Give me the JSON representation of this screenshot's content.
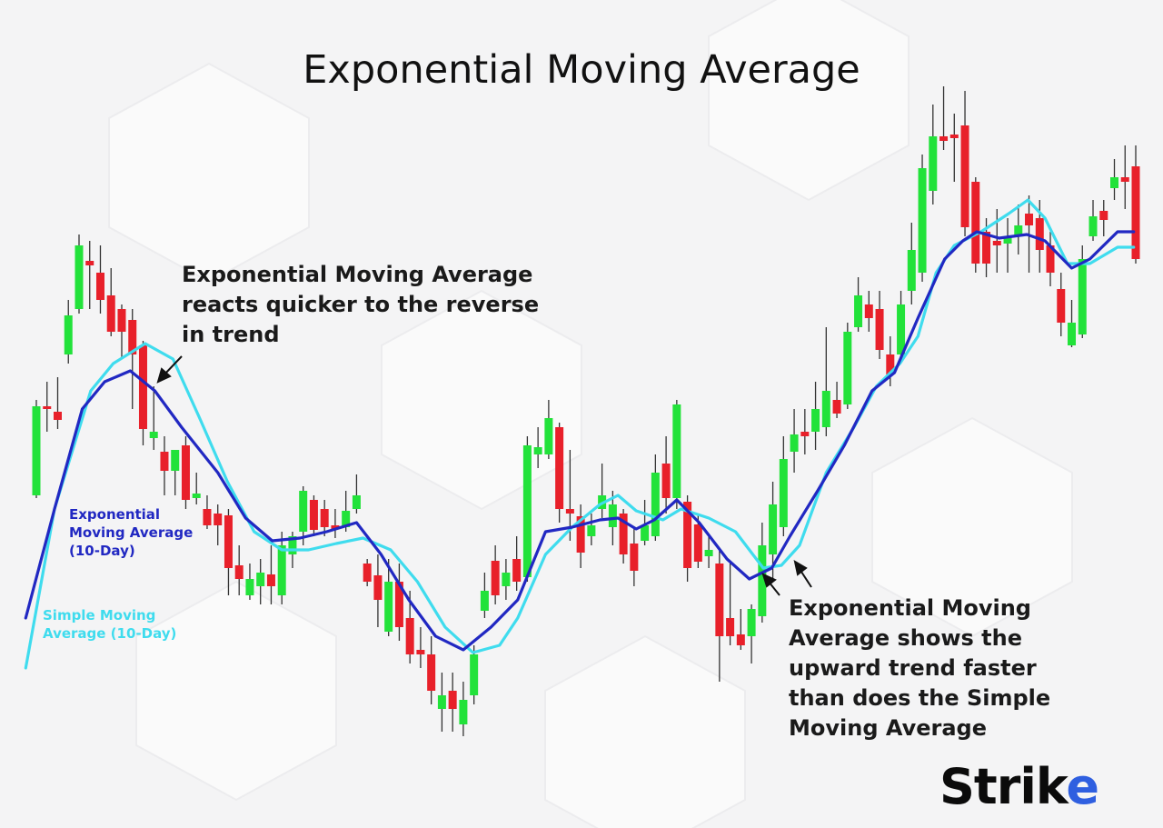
{
  "chart_data": {
    "type": "candlestick",
    "title": "Exponential Moving Average",
    "ylim": [
      0,
      900
    ],
    "up_color": "#22e23a",
    "down_color": "#e8202a",
    "open": [
      355,
      453,
      447,
      510,
      560,
      613,
      600,
      575,
      560,
      548,
      520,
      418,
      403,
      382,
      410,
      352,
      340,
      335,
      333,
      278,
      245,
      255,
      268,
      245,
      290,
      315,
      350,
      340,
      322,
      320,
      340,
      280,
      267,
      205,
      260,
      220,
      185,
      180,
      120,
      140,
      103,
      135,
      228,
      283,
      255,
      285,
      265,
      400,
      400,
      430,
      340,
      332,
      310,
      340,
      320,
      335,
      302,
      305,
      310,
      390,
      352,
      348,
      323,
      288,
      280,
      220,
      202,
      200,
      222,
      290,
      320,
      403,
      425,
      425,
      430,
      460,
      455,
      540,
      565,
      560,
      510,
      510,
      580,
      600,
      690,
      750,
      752,
      762,
      700,
      645,
      635,
      632,
      640,
      665,
      660,
      630,
      582,
      520,
      532,
      640,
      668,
      693,
      705,
      717
    ],
    "high": [
      460,
      480,
      485,
      570,
      642,
      635,
      630,
      605,
      565,
      560,
      525,
      475,
      420,
      405,
      420,
      380,
      355,
      345,
      340,
      300,
      280,
      285,
      300,
      315,
      315,
      365,
      355,
      350,
      340,
      360,
      378,
      285,
      290,
      285,
      280,
      250,
      210,
      200,
      160,
      160,
      150,
      190,
      270,
      300,
      285,
      310,
      420,
      430,
      460,
      435,
      405,
      345,
      335,
      390,
      360,
      340,
      320,
      350,
      400,
      420,
      460,
      355,
      335,
      310,
      295,
      280,
      230,
      235,
      325,
      370,
      420,
      450,
      450,
      480,
      540,
      480,
      545,
      595,
      580,
      580,
      530,
      580,
      655,
      730,
      785,
      805,
      775,
      800,
      705,
      660,
      670,
      660,
      675,
      685,
      680,
      645,
      600,
      570,
      630,
      680,
      680,
      725,
      740,
      740
    ],
    "low": [
      352,
      425,
      428,
      500,
      555,
      560,
      555,
      530,
      505,
      450,
      410,
      405,
      355,
      355,
      340,
      345,
      318,
      300,
      245,
      245,
      240,
      235,
      235,
      235,
      275,
      300,
      310,
      310,
      308,
      315,
      335,
      255,
      210,
      200,
      195,
      170,
      165,
      125,
      95,
      95,
      90,
      125,
      220,
      235,
      240,
      250,
      260,
      385,
      395,
      325,
      305,
      275,
      300,
      330,
      300,
      280,
      255,
      300,
      305,
      335,
      340,
      260,
      275,
      275,
      150,
      190,
      185,
      170,
      215,
      260,
      310,
      380,
      400,
      405,
      420,
      440,
      450,
      535,
      535,
      505,
      475,
      500,
      565,
      590,
      675,
      735,
      700,
      640,
      600,
      595,
      600,
      600,
      620,
      600,
      600,
      585,
      530,
      518,
      528,
      635,
      640,
      680,
      670,
      610
    ],
    "close": [
      453,
      450,
      438,
      553,
      630,
      608,
      570,
      535,
      535,
      510,
      428,
      425,
      382,
      405,
      350,
      357,
      322,
      322,
      275,
      263,
      263,
      270,
      255,
      300,
      310,
      360,
      317,
      320,
      318,
      338,
      355,
      260,
      240,
      260,
      210,
      180,
      180,
      140,
      135,
      120,
      130,
      180,
      250,
      245,
      270,
      260,
      410,
      408,
      440,
      340,
      335,
      292,
      322,
      355,
      345,
      290,
      272,
      322,
      380,
      352,
      455,
      275,
      282,
      295,
      200,
      200,
      190,
      230,
      300,
      345,
      395,
      422,
      420,
      450,
      470,
      445,
      535,
      575,
      550,
      515,
      488,
      565,
      625,
      715,
      750,
      745,
      748,
      650,
      610,
      610,
      630,
      640,
      652,
      652,
      625,
      600,
      545,
      545,
      615,
      662,
      658,
      705,
      700,
      615
    ],
    "series": [
      {
        "name": "Simple Moving\nAverage (10-Day)",
        "color": "#3fdcee",
        "x": [
          -1,
          1.7,
          5.1,
          7.2,
          10.2,
          12.8,
          15.3,
          17.9,
          20.4,
          23,
          25.5,
          28.1,
          30.6,
          33.2,
          35.7,
          38.3,
          40.9,
          43.4,
          45.1,
          47.7,
          50.2,
          52.8,
          54.5,
          56.2,
          58.7,
          60.4,
          63,
          65.5,
          68.1,
          69.8,
          71.5,
          74,
          76.6,
          78.7,
          80.9,
          82.6,
          84.3,
          86,
          88.5,
          91.1,
          92.9,
          94.5,
          96.6,
          98.7,
          101.3,
          102.8
        ],
        "values": [
          165,
          340,
          470,
          500,
          522,
          505,
          440,
          370,
          315,
          295,
          295,
          302,
          308,
          295,
          260,
          210,
          182,
          190,
          220,
          290,
          320,
          345,
          355,
          338,
          328,
          340,
          330,
          315,
          275,
          278,
          300,
          380,
          430,
          475,
          500,
          530,
          600,
          630,
          645,
          665,
          680,
          660,
          610,
          610,
          628,
          628
        ]
      },
      {
        "name": "Exponential\nMoving Average\n(10-Day)",
        "color": "#2128c2",
        "x": [
          -1,
          1.7,
          4.3,
          6.4,
          8.8,
          11.1,
          13.6,
          17,
          19.6,
          22.1,
          24.7,
          27.2,
          30,
          32.3,
          34.9,
          37.4,
          40,
          42.6,
          45.1,
          47.7,
          50.2,
          52.8,
          54.5,
          56.2,
          57.9,
          60,
          62.1,
          64.7,
          66.8,
          68.9,
          70.6,
          73.2,
          75.7,
          78.3,
          80.4,
          82.6,
          85.1,
          86.8,
          88.1,
          90.2,
          92.8,
          94.5,
          97,
          98.7,
          101.3,
          102.8
        ],
        "values": [
          220,
          340,
          450,
          480,
          492,
          470,
          430,
          380,
          330,
          305,
          308,
          315,
          325,
          290,
          240,
          200,
          185,
          210,
          240,
          315,
          320,
          328,
          330,
          318,
          328,
          350,
          325,
          285,
          263,
          275,
          310,
          360,
          410,
          470,
          490,
          550,
          615,
          635,
          645,
          638,
          642,
          635,
          605,
          615,
          645,
          645
        ]
      }
    ],
    "annotations": [
      "Exponential Moving Average\nreacts quicker to the reverse\nin trend",
      "Exponential Moving\nAverage shows the\nupward trend faster\nthan does the Simple\nMoving Average"
    ]
  },
  "logo": [
    "Strik",
    "e"
  ]
}
